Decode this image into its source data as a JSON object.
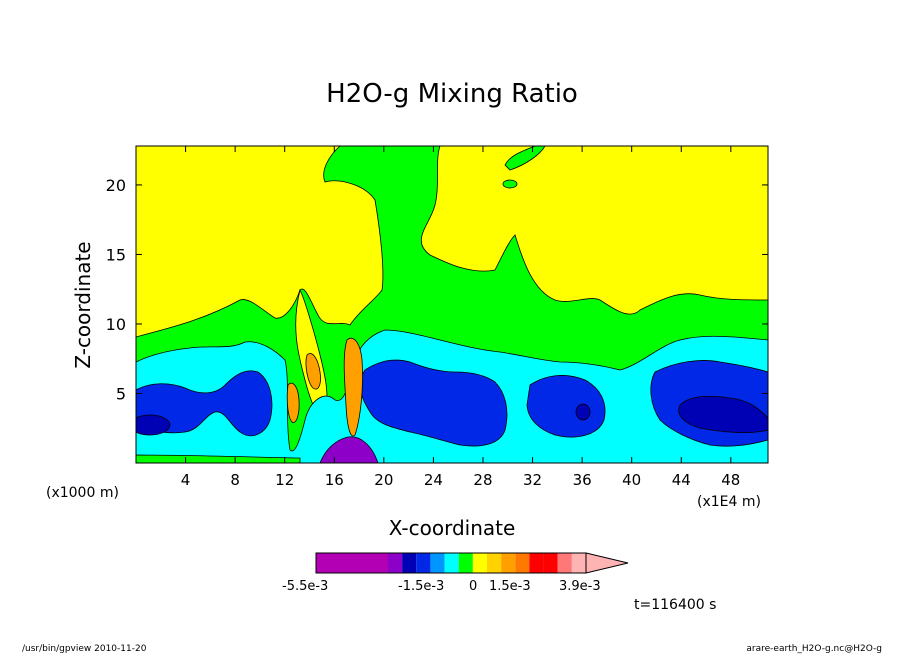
{
  "chart_data": {
    "type": "heatmap",
    "title": "H2O-g Mixing Ratio",
    "xlabel": "X-coordinate",
    "ylabel": "Z-coordinate",
    "x_unit_left": "(x1000 m)",
    "x_unit_right": "(x1E4 m)",
    "x_ticks": [
      "4",
      "8",
      "12",
      "16",
      "20",
      "24",
      "28",
      "32",
      "36",
      "40",
      "44",
      "48"
    ],
    "x_tick_values": [
      4,
      8,
      12,
      16,
      20,
      24,
      28,
      32,
      36,
      40,
      44,
      48
    ],
    "y_ticks": [
      "5",
      "10",
      "15",
      "20"
    ],
    "y_tick_values": [
      5,
      10,
      15,
      20
    ],
    "xlim": [
      0,
      51
    ],
    "ylim": [
      0,
      22.8
    ],
    "colorbar": {
      "labels": [
        "-5.5e-3",
        "-1.5e-3",
        "0",
        "1.5e-3",
        "3.9e-3"
      ],
      "colors": [
        "#b400b4",
        "#b400b4",
        "#b400b4",
        "#8c00c8",
        "#0000b4",
        "#0028e6",
        "#0096ff",
        "#00ffff",
        "#00ff00",
        "#ffff00",
        "#ffd200",
        "#ffa000",
        "#ff7800",
        "#ff0000",
        "#ff0000",
        "#ff7878",
        "#ffb4b4"
      ],
      "colors_note": "extended arrow at right end"
    },
    "regions": {
      "yellow": "#ffff00",
      "green": "#00ff00",
      "cyan": "#00ffff",
      "blue": "#0028e6",
      "navy": "#0000b4",
      "purple": "#8c00c8",
      "orange": "#ffa000"
    },
    "annotation": "t=116400 s"
  },
  "footer": {
    "left": "/usr/bin/gpview  2010-11-20",
    "right": "arare-earth_H2O-g.nc@H2O-g"
  }
}
